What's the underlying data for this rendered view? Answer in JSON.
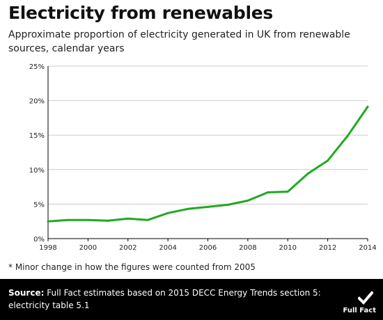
{
  "title": "Electricity from renewables",
  "subtitle": "Approximate proportion of electricity generated in UK from renewable sources, calendar years",
  "footnote": "* Minor change in how the figures were counted from 2005",
  "source": {
    "label": "Source:",
    "text": "Full Fact estimates based on 2015 DECC Energy Trends section 5: electricity table 5.1"
  },
  "logo": {
    "text": "Full Fact",
    "icon": "tick-icon"
  },
  "colors": {
    "line": "#1faa1f",
    "axis": "#000000",
    "grid": "#cccccc",
    "footer_bg": "#000000"
  },
  "chart_data": {
    "type": "line",
    "title": "Electricity from renewables",
    "xlabel": "",
    "ylabel": "",
    "x": [
      1998,
      1999,
      2000,
      2001,
      2002,
      2003,
      2004,
      2005,
      2006,
      2007,
      2008,
      2009,
      2010,
      2011,
      2012,
      2013,
      2014
    ],
    "series": [
      {
        "values": [
          2.5,
          2.7,
          2.7,
          2.6,
          2.9,
          2.7,
          3.7,
          4.3,
          4.6,
          4.9,
          5.5,
          6.7,
          6.8,
          9.4,
          11.3,
          14.9,
          19.1
        ]
      }
    ],
    "xlim": [
      1998,
      2014
    ],
    "ylim": [
      0,
      25
    ],
    "x_ticks": [
      "1998",
      "2000",
      "2002",
      "2004",
      "2006",
      "2008",
      "2010",
      "2012",
      "2014"
    ],
    "y_ticks": [
      "0%",
      "5%",
      "10%",
      "15%",
      "20%",
      "25%"
    ],
    "grid": true,
    "legend": "none"
  }
}
